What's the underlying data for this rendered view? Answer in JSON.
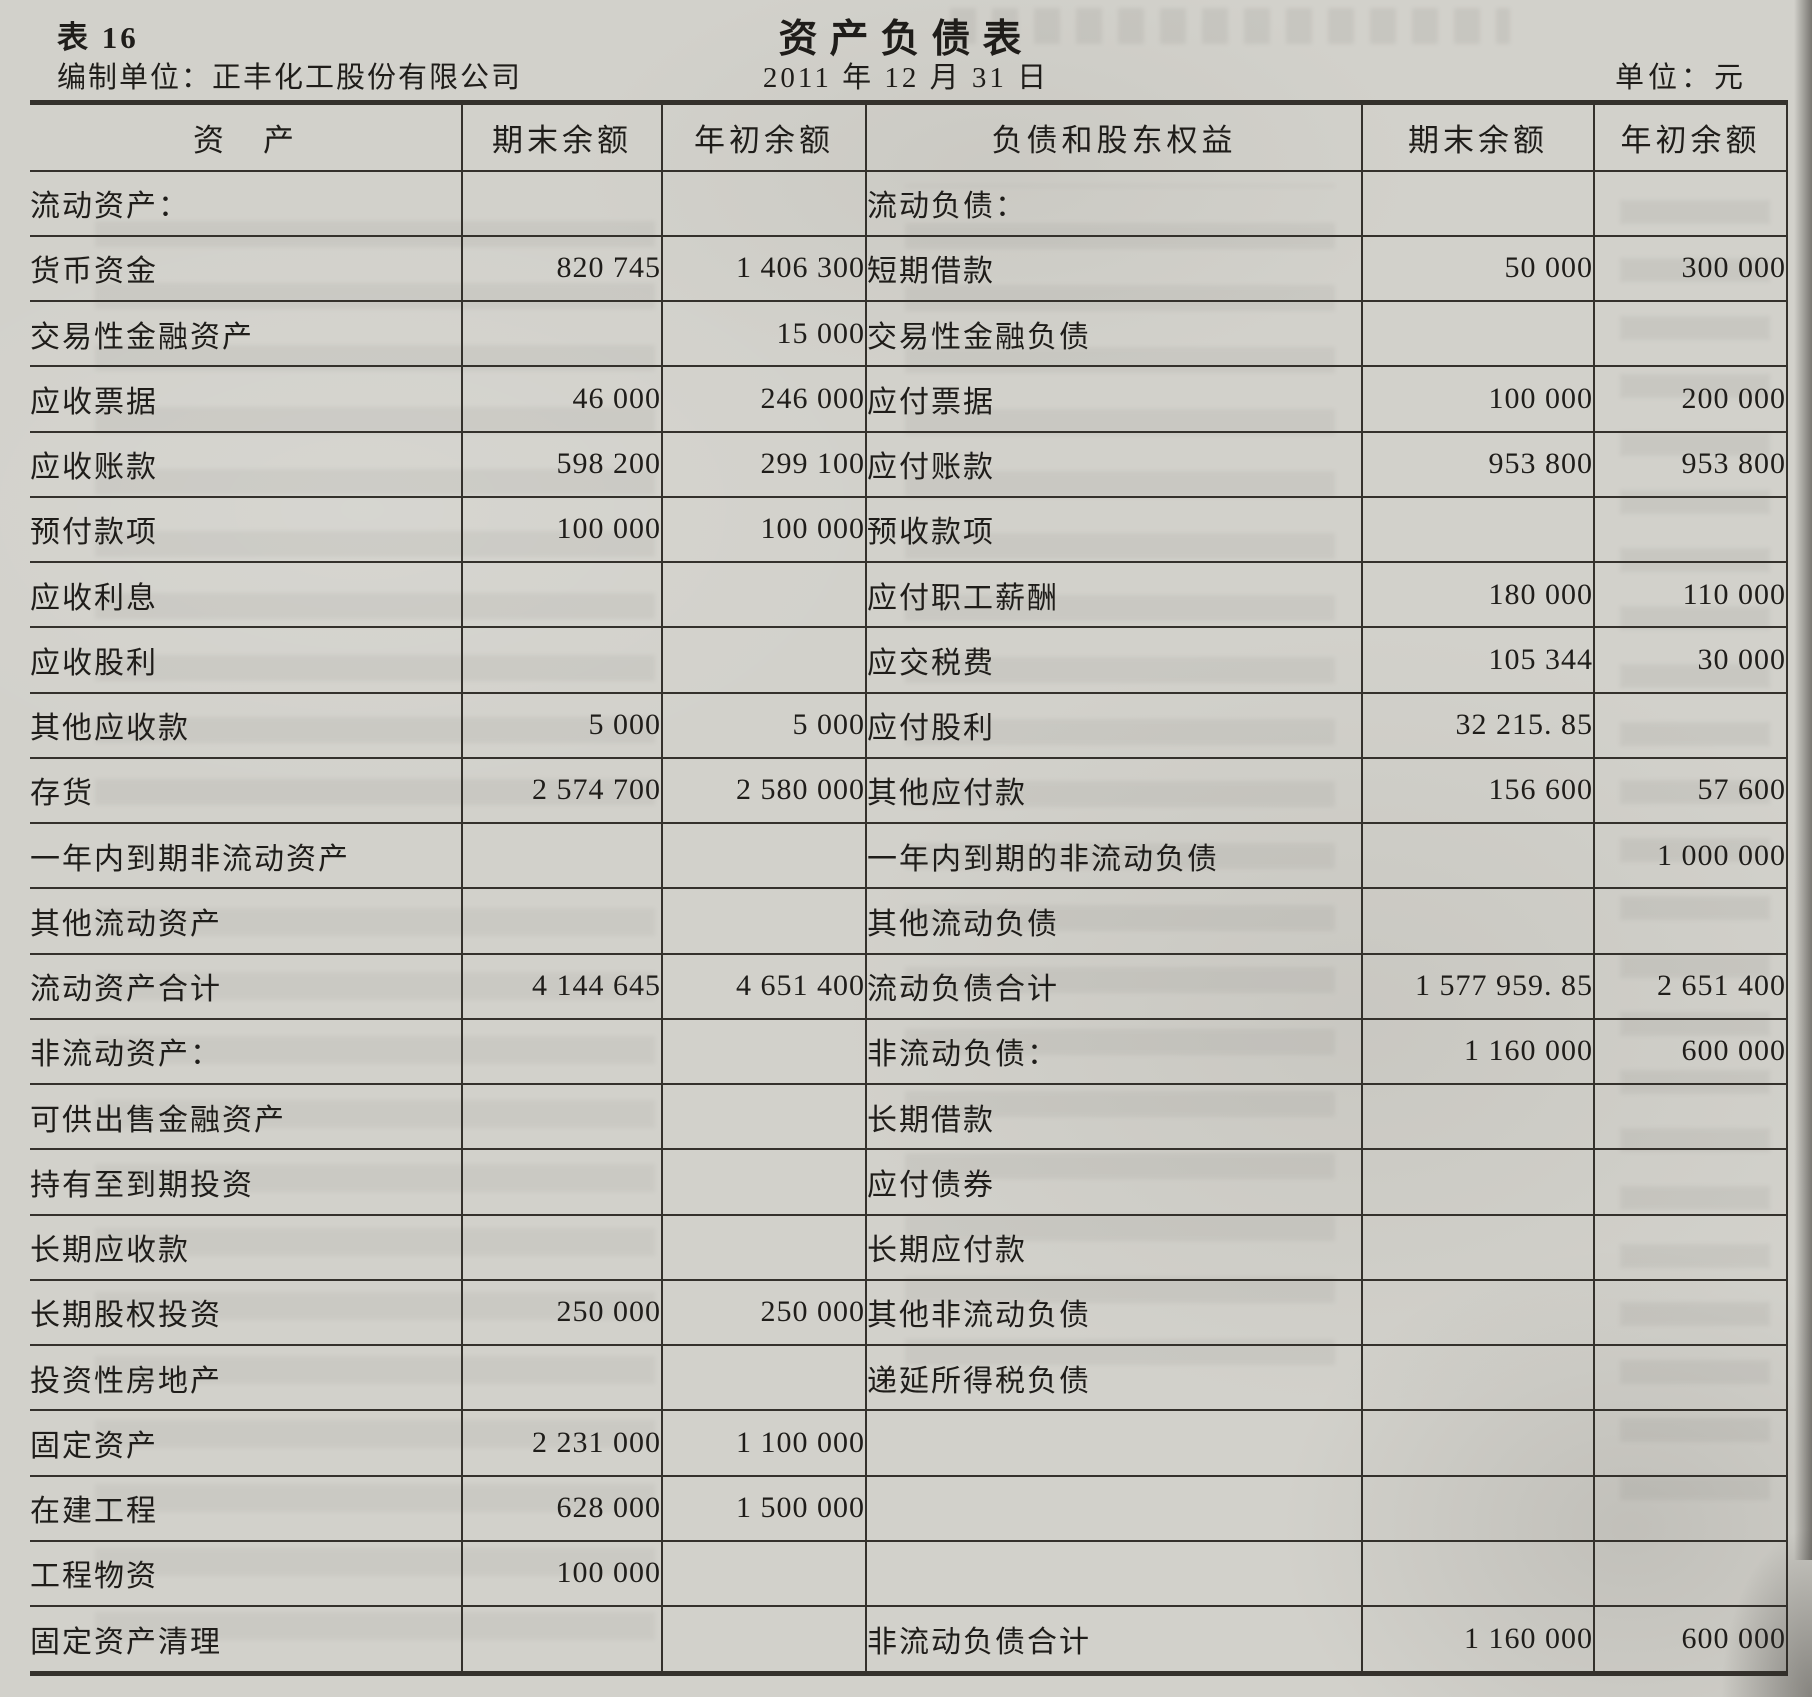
{
  "page": {
    "table_no": "表 16",
    "title": "资产负债表",
    "prepared_by": "编制单位：正丰化工股份有限公司",
    "report_date": "2011 年 12 月 31 日",
    "unit_label": "单位：元"
  },
  "colors": {
    "paper": "#d2d1cb",
    "ink": "#1f1d1a",
    "grid_line": "#34312c"
  },
  "balance_sheet": {
    "columns": [
      "资　产",
      "期末余额",
      "年初余额",
      "负债和股东权益",
      "期末余额",
      "年初余额"
    ],
    "rows": [
      [
        "流动资产：",
        "",
        "",
        "流动负债：",
        "",
        ""
      ],
      [
        "货币资金",
        "820 745",
        "1 406 300",
        "短期借款",
        "50 000",
        "300 000"
      ],
      [
        "交易性金融资产",
        "",
        "15 000",
        "交易性金融负债",
        "",
        ""
      ],
      [
        "应收票据",
        "46 000",
        "246 000",
        "应付票据",
        "100 000",
        "200 000"
      ],
      [
        "应收账款",
        "598 200",
        "299 100",
        "应付账款",
        "953 800",
        "953 800"
      ],
      [
        "预付款项",
        "100 000",
        "100 000",
        "预收款项",
        "",
        ""
      ],
      [
        "应收利息",
        "",
        "",
        "应付职工薪酬",
        "180 000",
        "110 000"
      ],
      [
        "应收股利",
        "",
        "",
        "应交税费",
        "105 344",
        "30 000"
      ],
      [
        "其他应收款",
        "5 000",
        "5 000",
        "应付股利",
        "32 215. 85",
        ""
      ],
      [
        "存货",
        "2 574 700",
        "2 580 000",
        "其他应付款",
        "156 600",
        "57 600"
      ],
      [
        "一年内到期非流动资产",
        "",
        "",
        "一年内到期的非流动负债",
        "",
        "1 000 000"
      ],
      [
        "其他流动资产",
        "",
        "",
        "其他流动负债",
        "",
        ""
      ],
      [
        "流动资产合计",
        "4 144 645",
        "4 651 400",
        "流动负债合计",
        "1 577 959. 85",
        "2 651 400"
      ],
      [
        "非流动资产：",
        "",
        "",
        "非流动负债：",
        "1 160 000",
        "600 000"
      ],
      [
        "可供出售金融资产",
        "",
        "",
        "长期借款",
        "",
        ""
      ],
      [
        "持有至到期投资",
        "",
        "",
        "应付债券",
        "",
        ""
      ],
      [
        "长期应收款",
        "",
        "",
        "长期应付款",
        "",
        ""
      ],
      [
        "长期股权投资",
        "250 000",
        "250 000",
        "其他非流动负债",
        "",
        ""
      ],
      [
        "投资性房地产",
        "",
        "",
        "递延所得税负债",
        "",
        ""
      ],
      [
        "固定资产",
        "2 231 000",
        "1 100 000",
        "",
        "",
        ""
      ],
      [
        "在建工程",
        "628 000",
        "1 500 000",
        "",
        "",
        ""
      ],
      [
        "工程物资",
        "100 000",
        "",
        "",
        "",
        ""
      ],
      [
        "固定资产清理",
        "",
        "",
        "非流动负债合计",
        "1 160 000",
        "600 000"
      ]
    ]
  }
}
